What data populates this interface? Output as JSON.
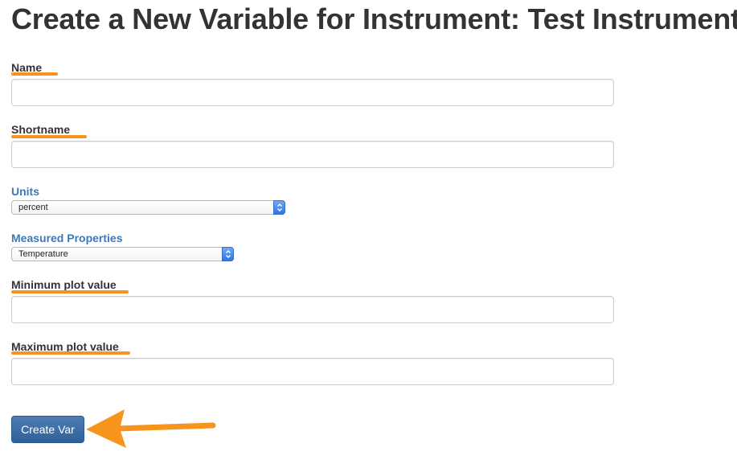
{
  "page": {
    "title": "Create a New Variable for Instrument: Test Instrument"
  },
  "form": {
    "name": {
      "label": "Name",
      "value": "",
      "placeholder": ""
    },
    "shortname": {
      "label": "Shortname",
      "value": "",
      "placeholder": ""
    },
    "units": {
      "label": "Units",
      "selected": "percent"
    },
    "measured_properties": {
      "label": "Measured Properties",
      "selected": "Temperature"
    },
    "minimum_plot_value": {
      "label": "Minimum plot value",
      "value": "",
      "placeholder": ""
    },
    "maximum_plot_value": {
      "label": "Maximum plot value",
      "value": "",
      "placeholder": ""
    },
    "submit_label": "Create Var"
  },
  "colors": {
    "annotation": "#f7941e",
    "link_label": "#3f79b5",
    "button": "#2f6099",
    "text": "#333333"
  },
  "icons": {
    "select_arrows": "select-up-down-icon",
    "annotation_arrow": "left-arrow-icon"
  }
}
